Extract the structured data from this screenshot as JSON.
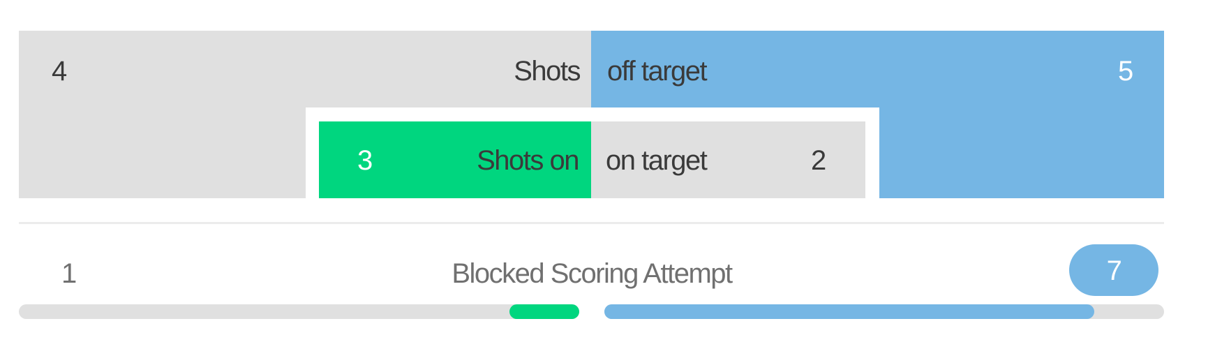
{
  "shots": {
    "off_target": {
      "home_value": "4",
      "away_value": "5",
      "label_left": "Shots",
      "label_right": "off target"
    },
    "on_target": {
      "home_value": "3",
      "away_value": "2",
      "label_left": "Shots on",
      "label_right": "on target"
    }
  },
  "blocked": {
    "label": "Blocked Scoring Attempt",
    "home_value": "1",
    "away_value": "7",
    "home_fill_percent": 12.5,
    "away_fill_percent": 87.5
  },
  "colors": {
    "home": "#00d67f",
    "away": "#75b6e4",
    "neutral": "#e0e0e0"
  }
}
